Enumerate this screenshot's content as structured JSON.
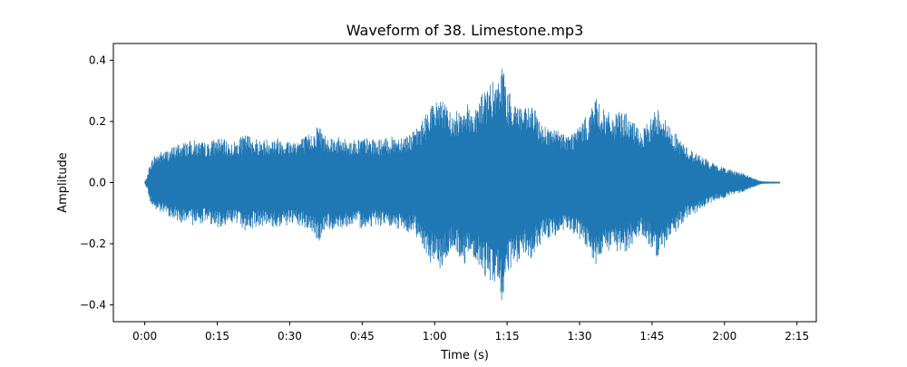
{
  "chart_data": {
    "type": "area",
    "title": "Waveform of 38. Limestone.mp3",
    "xlabel": "Time (s)",
    "ylabel": "Amplitude",
    "xlim": [
      -6.5,
      139
    ],
    "ylim": [
      -0.455,
      0.455
    ],
    "x_ticks": [
      {
        "value": 0,
        "label": "0:00"
      },
      {
        "value": 15,
        "label": "0:15"
      },
      {
        "value": 30,
        "label": "0:30"
      },
      {
        "value": 45,
        "label": "0:45"
      },
      {
        "value": 60,
        "label": "1:00"
      },
      {
        "value": 75,
        "label": "1:15"
      },
      {
        "value": 90,
        "label": "1:30"
      },
      {
        "value": 105,
        "label": "1:45"
      },
      {
        "value": 120,
        "label": "2:00"
      },
      {
        "value": 135,
        "label": "2:15"
      }
    ],
    "y_ticks": [
      {
        "value": 0.4,
        "label": "0.4"
      },
      {
        "value": 0.2,
        "label": "0.2"
      },
      {
        "value": 0.0,
        "label": "0.0"
      },
      {
        "value": -0.2,
        "label": "−0.2"
      },
      {
        "value": -0.4,
        "label": "−0.4"
      }
    ],
    "grid": false,
    "color": "#1f77b4",
    "series": [
      {
        "x": [
          0,
          0.5,
          1,
          2,
          3,
          5,
          7,
          10,
          13,
          15,
          18,
          21,
          24,
          27,
          30,
          33,
          35,
          36,
          37,
          40,
          43,
          45,
          48,
          51,
          54,
          56,
          58,
          59,
          60,
          61,
          62,
          64,
          66,
          68,
          70,
          72,
          73,
          74,
          75,
          77,
          79,
          80,
          82,
          84,
          86,
          88,
          90,
          92,
          93,
          94,
          95,
          97,
          99,
          101,
          103,
          105,
          106,
          107,
          108,
          110,
          112,
          114,
          116,
          118,
          120,
          122,
          124,
          126,
          127,
          128,
          131.5
        ],
        "envelope": [
          0.003,
          0.02,
          0.06,
          0.09,
          0.1,
          0.11,
          0.13,
          0.14,
          0.13,
          0.15,
          0.13,
          0.16,
          0.14,
          0.15,
          0.14,
          0.15,
          0.17,
          0.2,
          0.16,
          0.15,
          0.14,
          0.15,
          0.14,
          0.15,
          0.16,
          0.17,
          0.22,
          0.27,
          0.25,
          0.3,
          0.26,
          0.22,
          0.27,
          0.24,
          0.3,
          0.33,
          0.32,
          0.41,
          0.3,
          0.27,
          0.24,
          0.26,
          0.2,
          0.18,
          0.17,
          0.16,
          0.19,
          0.23,
          0.28,
          0.27,
          0.24,
          0.22,
          0.24,
          0.2,
          0.17,
          0.22,
          0.25,
          0.24,
          0.2,
          0.16,
          0.12,
          0.1,
          0.08,
          0.06,
          0.05,
          0.04,
          0.03,
          0.015,
          0.008,
          0.004,
          0.003
        ]
      }
    ]
  }
}
